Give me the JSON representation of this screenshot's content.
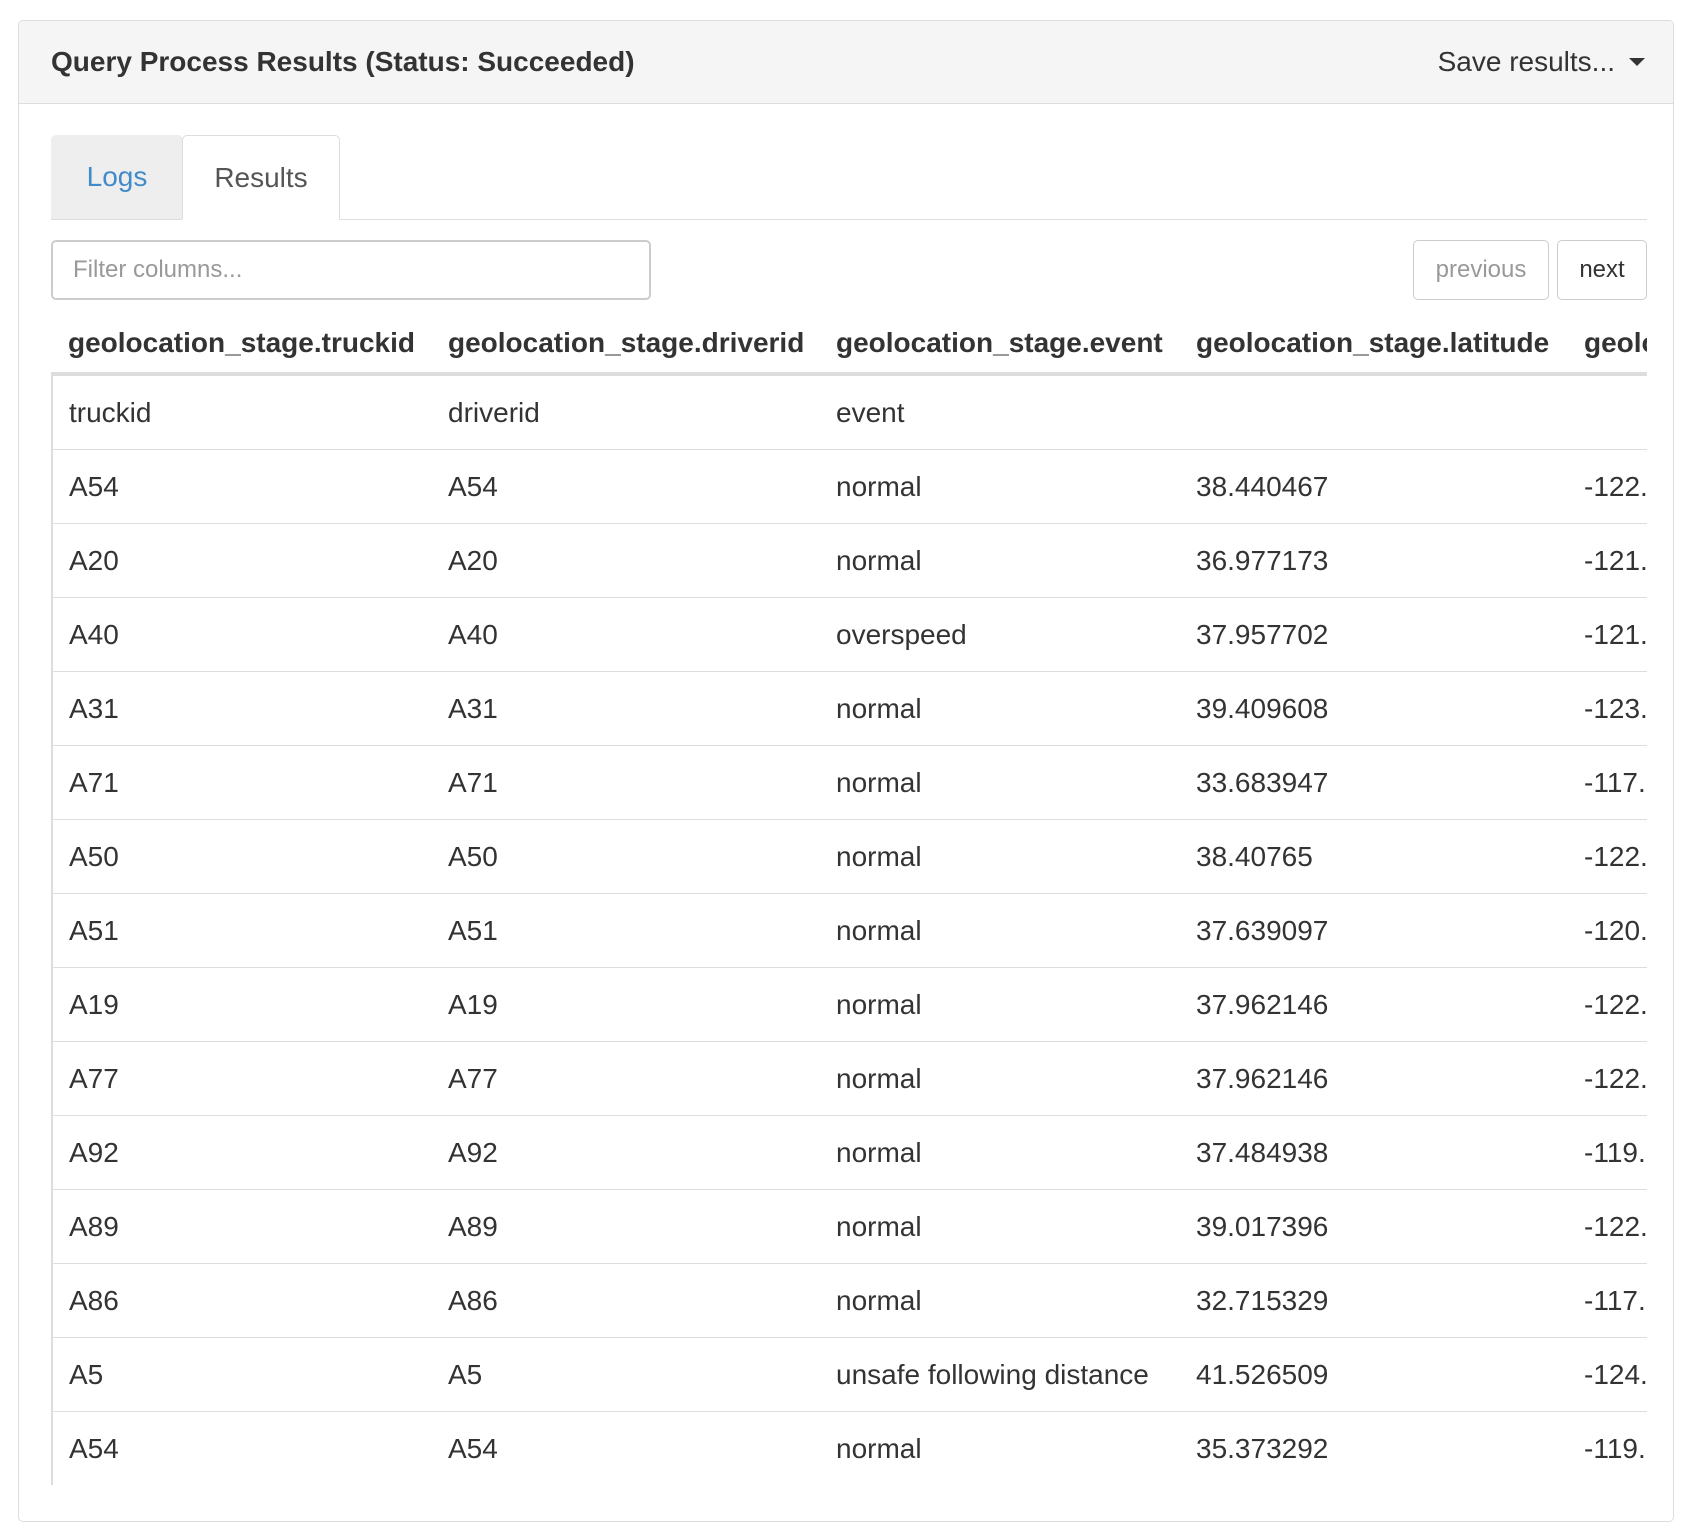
{
  "panel": {
    "title": "Query Process Results (Status: Succeeded)",
    "save_label": "Save results..."
  },
  "tabs": [
    {
      "label": "Logs"
    },
    {
      "label": "Results"
    }
  ],
  "toolbar": {
    "filter_placeholder": "Filter columns...",
    "filter_value": "",
    "previous_label": "previous",
    "next_label": "next"
  },
  "table": {
    "headers": [
      "geolocation_stage.truckid",
      "geolocation_stage.driverid",
      "geolocation_stage.event",
      "geolocation_stage.latitude",
      "geolo"
    ],
    "rows": [
      [
        "truckid",
        "driverid",
        "event",
        "",
        ""
      ],
      [
        "A54",
        "A54",
        "normal",
        "38.440467",
        "-122."
      ],
      [
        "A20",
        "A20",
        "normal",
        "36.977173",
        "-121."
      ],
      [
        "A40",
        "A40",
        "overspeed",
        "37.957702",
        "-121."
      ],
      [
        "A31",
        "A31",
        "normal",
        "39.409608",
        "-123."
      ],
      [
        "A71",
        "A71",
        "normal",
        "33.683947",
        "-117."
      ],
      [
        "A50",
        "A50",
        "normal",
        "38.40765",
        "-122."
      ],
      [
        "A51",
        "A51",
        "normal",
        "37.639097",
        "-120."
      ],
      [
        "A19",
        "A19",
        "normal",
        "37.962146",
        "-122."
      ],
      [
        "A77",
        "A77",
        "normal",
        "37.962146",
        "-122."
      ],
      [
        "A92",
        "A92",
        "normal",
        "37.484938",
        "-119."
      ],
      [
        "A89",
        "A89",
        "normal",
        "39.017396",
        "-122."
      ],
      [
        "A86",
        "A86",
        "normal",
        "32.715329",
        "-117."
      ],
      [
        "A5",
        "A5",
        "unsafe following distance",
        "41.526509",
        "-124."
      ],
      [
        "A54",
        "A54",
        "normal",
        "35.373292",
        "-119."
      ]
    ]
  }
}
